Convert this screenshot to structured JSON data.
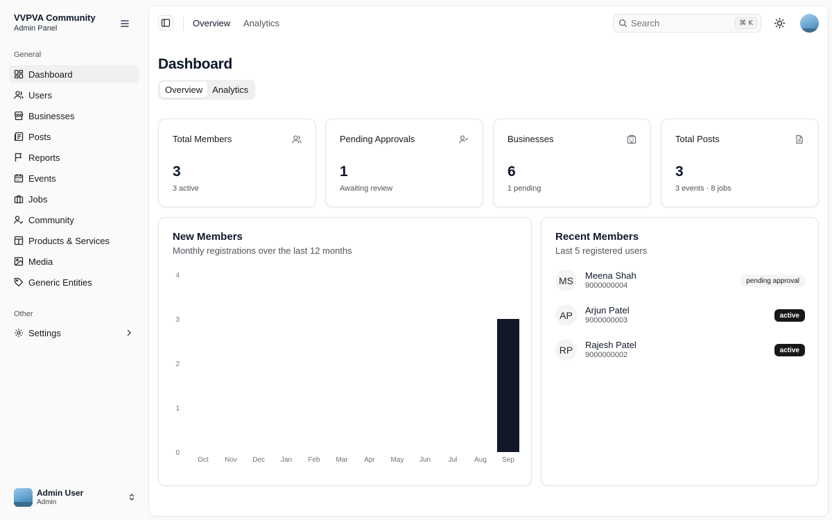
{
  "sidebar": {
    "brand_title": "VVPVA Community",
    "brand_subtitle": "Admin Panel",
    "groups": [
      {
        "label": "General",
        "items": [
          {
            "label": "Dashboard",
            "icon": "dashboard-icon",
            "active": true
          },
          {
            "label": "Users",
            "icon": "users-icon"
          },
          {
            "label": "Businesses",
            "icon": "store-icon"
          },
          {
            "label": "Posts",
            "icon": "newspaper-icon"
          },
          {
            "label": "Reports",
            "icon": "flag-icon"
          },
          {
            "label": "Events",
            "icon": "calendar-icon"
          },
          {
            "label": "Jobs",
            "icon": "briefcase-icon"
          },
          {
            "label": "Community",
            "icon": "community-icon"
          },
          {
            "label": "Products & Services",
            "icon": "package-icon"
          },
          {
            "label": "Media",
            "icon": "image-icon"
          },
          {
            "label": "Generic Entities",
            "icon": "tag-icon"
          }
        ]
      },
      {
        "label": "Other",
        "items": [
          {
            "label": "Settings",
            "icon": "gear-icon"
          }
        ]
      }
    ],
    "user": {
      "name": "Admin User",
      "role": "Admin"
    }
  },
  "topbar": {
    "links": [
      "Overview",
      "Analytics"
    ],
    "search_placeholder": "Search",
    "search_shortcut": "⌘ K"
  },
  "page": {
    "title": "Dashboard",
    "tabs": [
      "Overview",
      "Analytics"
    ]
  },
  "stats": [
    {
      "title": "Total Members",
      "value": "3",
      "sub": "3 active",
      "icon": "users-icon"
    },
    {
      "title": "Pending Approvals",
      "value": "1",
      "sub": "Awaiting review",
      "icon": "user-check-icon"
    },
    {
      "title": "Businesses",
      "value": "6",
      "sub": "1 pending",
      "icon": "building-icon"
    },
    {
      "title": "Total Posts",
      "value": "3",
      "sub": "3 events · 8 jobs",
      "icon": "file-icon"
    }
  ],
  "new_members": {
    "title": "New Members",
    "description": "Monthly registrations over the last 12 months"
  },
  "recent_members": {
    "title": "Recent Members",
    "description": "Last 5 registered users",
    "items": [
      {
        "initials": "MS",
        "name": "Meena Shah",
        "phone": "9000000004",
        "status": "pending approval",
        "status_type": "pending"
      },
      {
        "initials": "AP",
        "name": "Arjun Patel",
        "phone": "9000000003",
        "status": "active",
        "status_type": "active"
      },
      {
        "initials": "RP",
        "name": "Rajesh Patel",
        "phone": "9000000002",
        "status": "active",
        "status_type": "active"
      }
    ]
  },
  "colors": {
    "bar": "#111827",
    "badge_active": "#18181b"
  },
  "chart_data": {
    "type": "bar",
    "categories": [
      "Oct",
      "Nov",
      "Dec",
      "Jan",
      "Feb",
      "Mar",
      "Apr",
      "May",
      "Jun",
      "Jul",
      "Aug",
      "Sep"
    ],
    "values": [
      0,
      0,
      0,
      0,
      0,
      0,
      0,
      0,
      0,
      0,
      0,
      3
    ],
    "yticks": [
      0,
      1,
      2,
      3,
      4
    ],
    "ylim": [
      0,
      4
    ],
    "grid": false,
    "legend": "none"
  }
}
